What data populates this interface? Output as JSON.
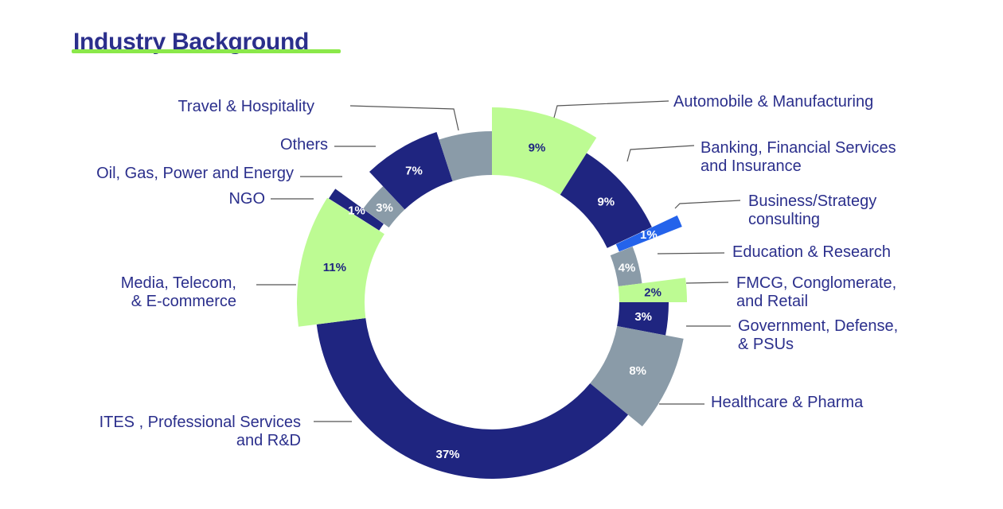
{
  "title": "Industry Background",
  "colors": {
    "title": "#2b2f8c",
    "underline": "#8be84a"
  },
  "chart_data": {
    "type": "pie",
    "title": "Industry Background",
    "style": "variable-radius donut with leader-line labels",
    "slices": [
      {
        "label": "Automobile & Manufacturing",
        "label_lines": [
          "Automobile & Manufacturing"
        ],
        "value": 9,
        "pct_label": "9%",
        "color": "#bdfb93",
        "text_color": "#1f2580"
      },
      {
        "label": "Banking, Financial Services and Insurance",
        "label_lines": [
          "Banking, Financial Services",
          "and Insurance"
        ],
        "value": 9,
        "pct_label": "9%",
        "color": "#1f2580",
        "text_color": "#ffffff"
      },
      {
        "label": "Business/Strategy consulting",
        "label_lines": [
          "Business/Strategy",
          "consulting"
        ],
        "value": 1,
        "pct_label": "1%",
        "color": "#2463eb",
        "text_color": "#ffffff"
      },
      {
        "label": "Education & Research",
        "label_lines": [
          "Education & Research"
        ],
        "value": 4,
        "pct_label": "4%",
        "color": "#8a9ba8",
        "text_color": "#ffffff"
      },
      {
        "label": "FMCG, Conglomerate, and Retail",
        "label_lines": [
          "FMCG, Conglomerate,",
          "and Retail"
        ],
        "value": 2,
        "pct_label": "2%",
        "color": "#bdfb93",
        "text_color": "#1f2580"
      },
      {
        "label": "Government, Defense, & PSUs",
        "label_lines": [
          "Government, Defense,",
          "& PSUs"
        ],
        "value": 3,
        "pct_label": "3%",
        "color": "#1f2580",
        "text_color": "#ffffff"
      },
      {
        "label": "Healthcare & Pharma",
        "label_lines": [
          "Healthcare & Pharma"
        ],
        "value": 8,
        "pct_label": "8%",
        "color": "#8a9ba8",
        "text_color": "#ffffff"
      },
      {
        "label": "ITES , Professional Services and R&D",
        "label_lines": [
          "ITES , Professional Services",
          "and R&D"
        ],
        "value": 37,
        "pct_label": "37%",
        "color": "#1f2580",
        "text_color": "#ffffff"
      },
      {
        "label": "Media, Telecom, & E-commerce",
        "label_lines": [
          "Media, Telecom,",
          "& E-commerce"
        ],
        "value": 11,
        "pct_label": "11%",
        "color": "#bdfb93",
        "text_color": "#1f2580"
      },
      {
        "label": "NGO",
        "label_lines": [
          "NGO"
        ],
        "value": 1,
        "pct_label": "1%",
        "color": "#1f2580",
        "text_color": "#ffffff"
      },
      {
        "label": "Oil, Gas, Power and Energy",
        "label_lines": [
          "Oil, Gas, Power and Energy"
        ],
        "value": 3,
        "pct_label": "3%",
        "color": "#8a9ba8",
        "text_color": "#ffffff"
      },
      {
        "label": "Others",
        "label_lines": [
          "Others"
        ],
        "value": 7,
        "pct_label": "7%",
        "color": "#1f2580",
        "text_color": "#ffffff"
      },
      {
        "label": "Travel & Hospitality",
        "label_lines": [
          "Travel & Hospitality"
        ],
        "value": 5,
        "pct_label": "",
        "color": "#8a9ba8",
        "text_color": "#ffffff"
      }
    ]
  }
}
